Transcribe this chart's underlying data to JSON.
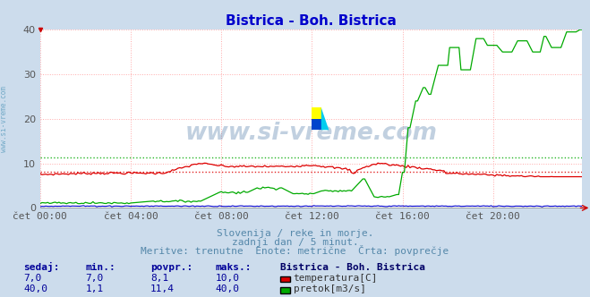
{
  "title": "Bistrica - Boh. Bistrica",
  "title_color": "#0000cc",
  "bg_color": "#ccdcec",
  "plot_bg_color": "#ffffff",
  "xlabel_ticks": [
    "čet 00:00",
    "čet 04:00",
    "čet 08:00",
    "čet 12:00",
    "čet 16:00",
    "čet 20:00"
  ],
  "yticks": [
    0,
    10,
    20,
    30,
    40
  ],
  "ylim": [
    0,
    40
  ],
  "xlim": [
    0,
    287
  ],
  "grid_color": "#ffaaaa",
  "grid_style": ":",
  "watermark_text": "www.si-vreme.com",
  "watermark_color": "#336699",
  "footer_lines": [
    "Slovenija / reke in morje.",
    "zadnji dan / 5 minut.",
    "Meritve: trenutne  Enote: metrične  Črta: povprečje"
  ],
  "footer_color": "#5588aa",
  "legend_title": "Bistrica - Boh. Bistrica",
  "legend_items": [
    {
      "label": "temperatura[C]",
      "color": "#dd0000"
    },
    {
      "label": "pretok[m3/s]",
      "color": "#00aa00"
    }
  ],
  "table_headers": [
    "sedaj:",
    "min.:",
    "povpr.:",
    "maks.:"
  ],
  "table_rows": [
    [
      "7,0",
      "7,0",
      "8,1",
      "10,0"
    ],
    [
      "40,0",
      "1,1",
      "11,4",
      "40,0"
    ]
  ],
  "table_color": "#000099",
  "n_points": 288,
  "temp_avg": 8.1,
  "temp_color": "#dd0000",
  "flow_color": "#00aa00",
  "flow_avg": 11.4,
  "height_color": "#0000cc",
  "sidebar_text": "www.si-vreme.com",
  "sidebar_color": "#5599bb",
  "tick_color": "#555555",
  "tick_fontsize": 8,
  "title_fontsize": 11,
  "footer_fontsize": 8,
  "table_fontsize": 8
}
